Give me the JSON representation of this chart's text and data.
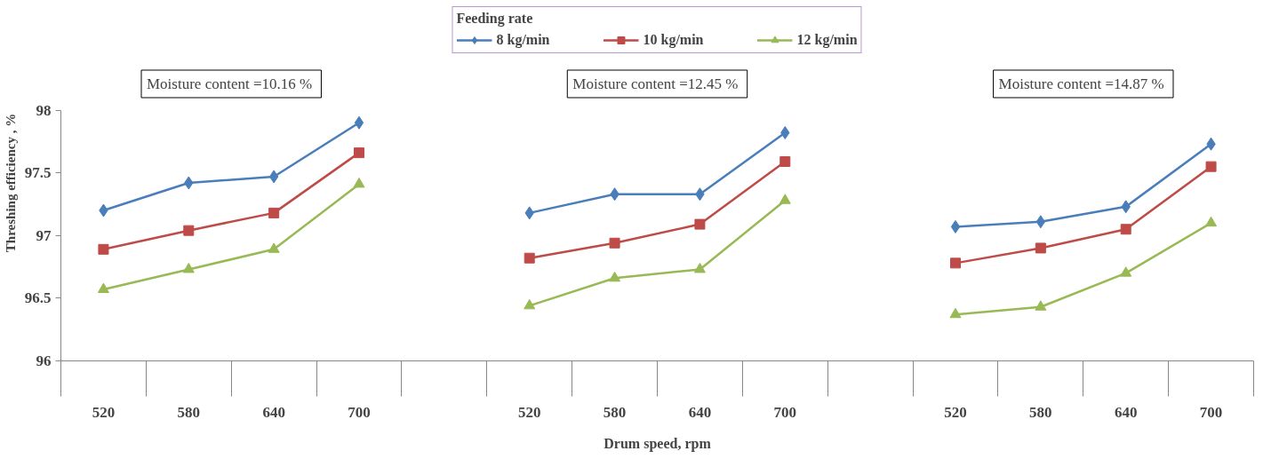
{
  "chart_data": {
    "type": "line",
    "xlabel": "Drum speed, rpm",
    "ylabel": "Threshing efficiency , %",
    "legend_title": "Feeding rate",
    "categories": [
      "520",
      "580",
      "640",
      "700",
      null,
      "520",
      "580",
      "640",
      "700",
      null,
      "520",
      "580",
      "640",
      "700"
    ],
    "series": [
      {
        "name": "8 kg/min",
        "color": "#4a7ebb",
        "marker": "diamond",
        "values": [
          97.2,
          97.42,
          97.47,
          97.9,
          null,
          97.18,
          97.33,
          97.33,
          97.82,
          null,
          97.07,
          97.11,
          97.23,
          97.73
        ]
      },
      {
        "name": "10 kg/min",
        "color": "#be4b48",
        "marker": "square",
        "values": [
          96.89,
          97.04,
          97.18,
          97.66,
          null,
          96.82,
          96.94,
          97.09,
          97.59,
          null,
          96.78,
          96.9,
          97.05,
          97.55
        ]
      },
      {
        "name": "12 kg/min",
        "color": "#98b954",
        "marker": "triangle",
        "values": [
          96.57,
          96.73,
          96.89,
          97.41,
          null,
          96.44,
          96.66,
          96.73,
          97.28,
          null,
          96.37,
          96.43,
          96.7,
          97.1
        ]
      }
    ],
    "annotations": [
      "Moisture content  =10.16 %",
      "Moisture content  =12.45 %",
      "Moisture content  =14.87 %"
    ],
    "ylim": [
      96,
      98
    ],
    "yticks": [
      96,
      96.5,
      97,
      97.5,
      98
    ],
    "grid": false,
    "legend": "top",
    "line_style": "solid"
  }
}
